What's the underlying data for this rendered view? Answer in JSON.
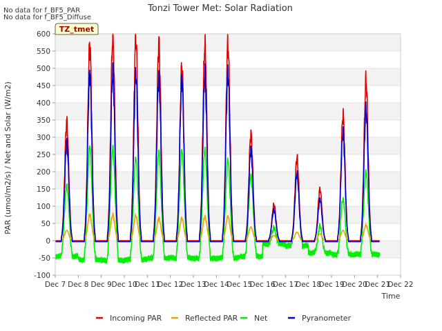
{
  "notes": [
    "No data for f_BF5_PAR",
    "No data for f_BF5_Diffuse"
  ],
  "chart_data": {
    "type": "line",
    "title": "Tonzi Tower Met: Solar Radiation",
    "xlabel": "Time",
    "ylabel": "PAR (umol/m2/s) / Net and Solar (W/m2)",
    "site_label": "TZ_tmet",
    "ylim": [
      -100,
      600
    ],
    "yticks": [
      -100,
      -50,
      0,
      50,
      100,
      150,
      200,
      250,
      300,
      350,
      400,
      450,
      500,
      550,
      600
    ],
    "xlim": [
      7,
      22
    ],
    "xticks": [
      7,
      8,
      9,
      10,
      11,
      12,
      13,
      14,
      15,
      16,
      17,
      18,
      19,
      20,
      21,
      22
    ],
    "xtick_labels": [
      "Dec 7",
      "Dec 8",
      "Dec 9",
      "Dec 10",
      "Dec 11",
      "Dec 12",
      "Dec 13",
      "Dec 14",
      "Dec 15",
      "Dec 16",
      "Dec 17",
      "Dec 18",
      "Dec 19",
      "Dec 20",
      "Dec 21",
      "Dec 22"
    ],
    "grid": true,
    "legend_position": "bottom",
    "daily_peaks": {
      "day": [
        7.5,
        8.5,
        9.5,
        10.5,
        11.5,
        12.5,
        13.5,
        14.5,
        15.5,
        16.5,
        17.5,
        18.5,
        19.5,
        20.5
      ],
      "incoming_par": [
        345,
        570,
        595,
        590,
        575,
        505,
        570,
        570,
        310,
        105,
        240,
        150,
        365,
        465
      ],
      "reflected_par": [
        30,
        75,
        75,
        72,
        65,
        65,
        70,
        70,
        40,
        15,
        25,
        20,
        30,
        45
      ],
      "net": [
        160,
        275,
        270,
        240,
        260,
        265,
        265,
        235,
        190,
        40,
        195,
        50,
        120,
        200
      ],
      "pyranometer": [
        285,
        490,
        490,
        485,
        480,
        470,
        480,
        485,
        265,
        90,
        195,
        120,
        315,
        380
      ],
      "net_night": [
        -45,
        -55,
        -58,
        -55,
        -50,
        -50,
        -52,
        -50,
        -45,
        -10,
        -15,
        -35,
        -40,
        -40
      ]
    },
    "series": [
      {
        "name": "Incoming PAR",
        "color": "#e00000"
      },
      {
        "name": "Reflected PAR",
        "color": "#f0a000"
      },
      {
        "name": "Net",
        "color": "#00ee00"
      },
      {
        "name": "Pyranometer",
        "color": "#0000cc"
      }
    ]
  }
}
